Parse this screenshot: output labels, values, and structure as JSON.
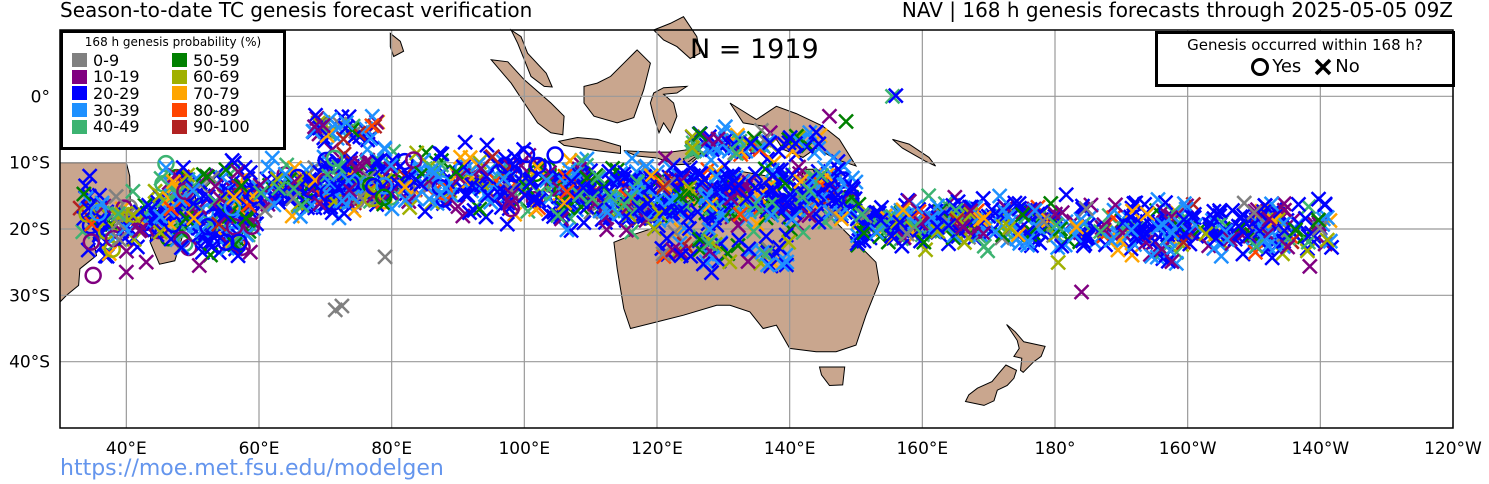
{
  "header": {
    "title_left": "Season-to-date TC genesis forecast verification",
    "title_right": "NAV | 168 h genesis forecasts through 2025-05-05 09Z"
  },
  "count_label": "N = 1919",
  "footer": {
    "url": "https://moe.met.fsu.edu/modelgen"
  },
  "legend": {
    "title": "168 h genesis probability (%)",
    "items": [
      {
        "label": "0-9",
        "color": "#808080"
      },
      {
        "label": "50-59",
        "color": "#008000"
      },
      {
        "label": "10-19",
        "color": "#800080"
      },
      {
        "label": "60-69",
        "color": "#A0B000"
      },
      {
        "label": "20-29",
        "color": "#0000FF"
      },
      {
        "label": "70-79",
        "color": "#FFA500"
      },
      {
        "label": "30-39",
        "color": "#1E90FF"
      },
      {
        "label": "80-89",
        "color": "#FF4500"
      },
      {
        "label": "40-49",
        "color": "#3CB371"
      },
      {
        "label": "90-100",
        "color": "#B22222"
      }
    ]
  },
  "outcome_legend": {
    "title": "Genesis occurred within 168 h?",
    "yes_label": "Yes",
    "no_label": "No",
    "yes_icon": "circle-marker-icon",
    "no_icon": "x-marker-icon"
  },
  "map": {
    "lon_range": [
      30,
      240
    ],
    "lat_range": [
      -50,
      10
    ],
    "lat_ticks": [
      {
        "value": 0,
        "label": "0°"
      },
      {
        "value": -10,
        "label": "10°S"
      },
      {
        "value": -20,
        "label": "20°S"
      },
      {
        "value": -30,
        "label": "30°S"
      },
      {
        "value": -40,
        "label": "40°S"
      }
    ],
    "lon_ticks": [
      {
        "value": 40,
        "label": "40°E"
      },
      {
        "value": 60,
        "label": "60°E"
      },
      {
        "value": 80,
        "label": "80°E"
      },
      {
        "value": 100,
        "label": "100°E"
      },
      {
        "value": 120,
        "label": "120°E"
      },
      {
        "value": 140,
        "label": "140°E"
      },
      {
        "value": 160,
        "label": "160°E"
      },
      {
        "value": 180,
        "label": "180°"
      },
      {
        "value": 200,
        "label": "160°W"
      },
      {
        "value": 220,
        "label": "140°W"
      },
      {
        "value": 240,
        "label": "120°W"
      }
    ],
    "land_color": "#C9A68E",
    "marker_clusters": [
      {
        "lon": [
          33,
          38
        ],
        "lat": [
          -28,
          -10
        ],
        "n": 40,
        "yes_frac": 0.25
      },
      {
        "lon": [
          38,
          60
        ],
        "lat": [
          -26,
          -12
        ],
        "n": 180,
        "yes_frac": 0.12
      },
      {
        "lon": [
          45,
          75
        ],
        "lat": [
          -20,
          -8
        ],
        "n": 240,
        "yes_frac": 0.1
      },
      {
        "lon": [
          70,
          110
        ],
        "lat": [
          -20,
          -6
        ],
        "n": 330,
        "yes_frac": 0.12
      },
      {
        "lon": [
          68,
          78
        ],
        "lat": [
          -8,
          -2
        ],
        "n": 50,
        "yes_frac": 0
      },
      {
        "lon": [
          105,
          118
        ],
        "lat": [
          -22,
          -8
        ],
        "n": 130,
        "yes_frac": 0.02
      },
      {
        "lon": [
          115,
          150
        ],
        "lat": [
          -22,
          -8
        ],
        "n": 400,
        "yes_frac": 0.02
      },
      {
        "lon": [
          120,
          140
        ],
        "lat": [
          -27,
          -19
        ],
        "n": 60,
        "yes_frac": 0
      },
      {
        "lon": [
          125,
          145
        ],
        "lat": [
          -10,
          -4
        ],
        "n": 80,
        "yes_frac": 0
      },
      {
        "lon": [
          150,
          180
        ],
        "lat": [
          -24,
          -14
        ],
        "n": 280,
        "yes_frac": 0
      },
      {
        "lon": [
          180,
          215
        ],
        "lat": [
          -26,
          -14
        ],
        "n": 260,
        "yes_frac": 0
      },
      {
        "lon": [
          210,
          222
        ],
        "lat": [
          -26,
          -14
        ],
        "n": 60,
        "yes_frac": 0
      }
    ],
    "sparse_markers": [
      {
        "lon": 71.5,
        "lat": -32.2,
        "color": "#808080",
        "type": "no"
      },
      {
        "lon": 72.5,
        "lat": -31.6,
        "color": "#808080",
        "type": "no"
      },
      {
        "lon": 79,
        "lat": -24.2,
        "color": "#808080",
        "type": "no"
      },
      {
        "lon": 184,
        "lat": -29.5,
        "color": "#800080",
        "type": "no"
      },
      {
        "lon": 146,
        "lat": -3,
        "color": "#800080",
        "type": "no"
      },
      {
        "lon": 148.5,
        "lat": -3.8,
        "color": "#008000",
        "type": "no"
      },
      {
        "lon": 155.5,
        "lat": 0,
        "color": "#3CB371",
        "type": "no"
      },
      {
        "lon": 156,
        "lat": 0.1,
        "color": "#0000FF",
        "type": "no"
      },
      {
        "lon": 35,
        "lat": -27,
        "color": "#800080",
        "type": "yes"
      },
      {
        "lon": 57,
        "lat": -22,
        "color": "#0000FF",
        "type": "yes"
      },
      {
        "lon": 55,
        "lat": -22,
        "color": "#0000FF",
        "type": "yes"
      },
      {
        "lon": 40,
        "lat": -26.5,
        "color": "#800080",
        "type": "no"
      },
      {
        "lon": 43,
        "lat": -25,
        "color": "#800080",
        "type": "no"
      },
      {
        "lon": 51,
        "lat": -25.5,
        "color": "#800080",
        "type": "no"
      }
    ]
  }
}
